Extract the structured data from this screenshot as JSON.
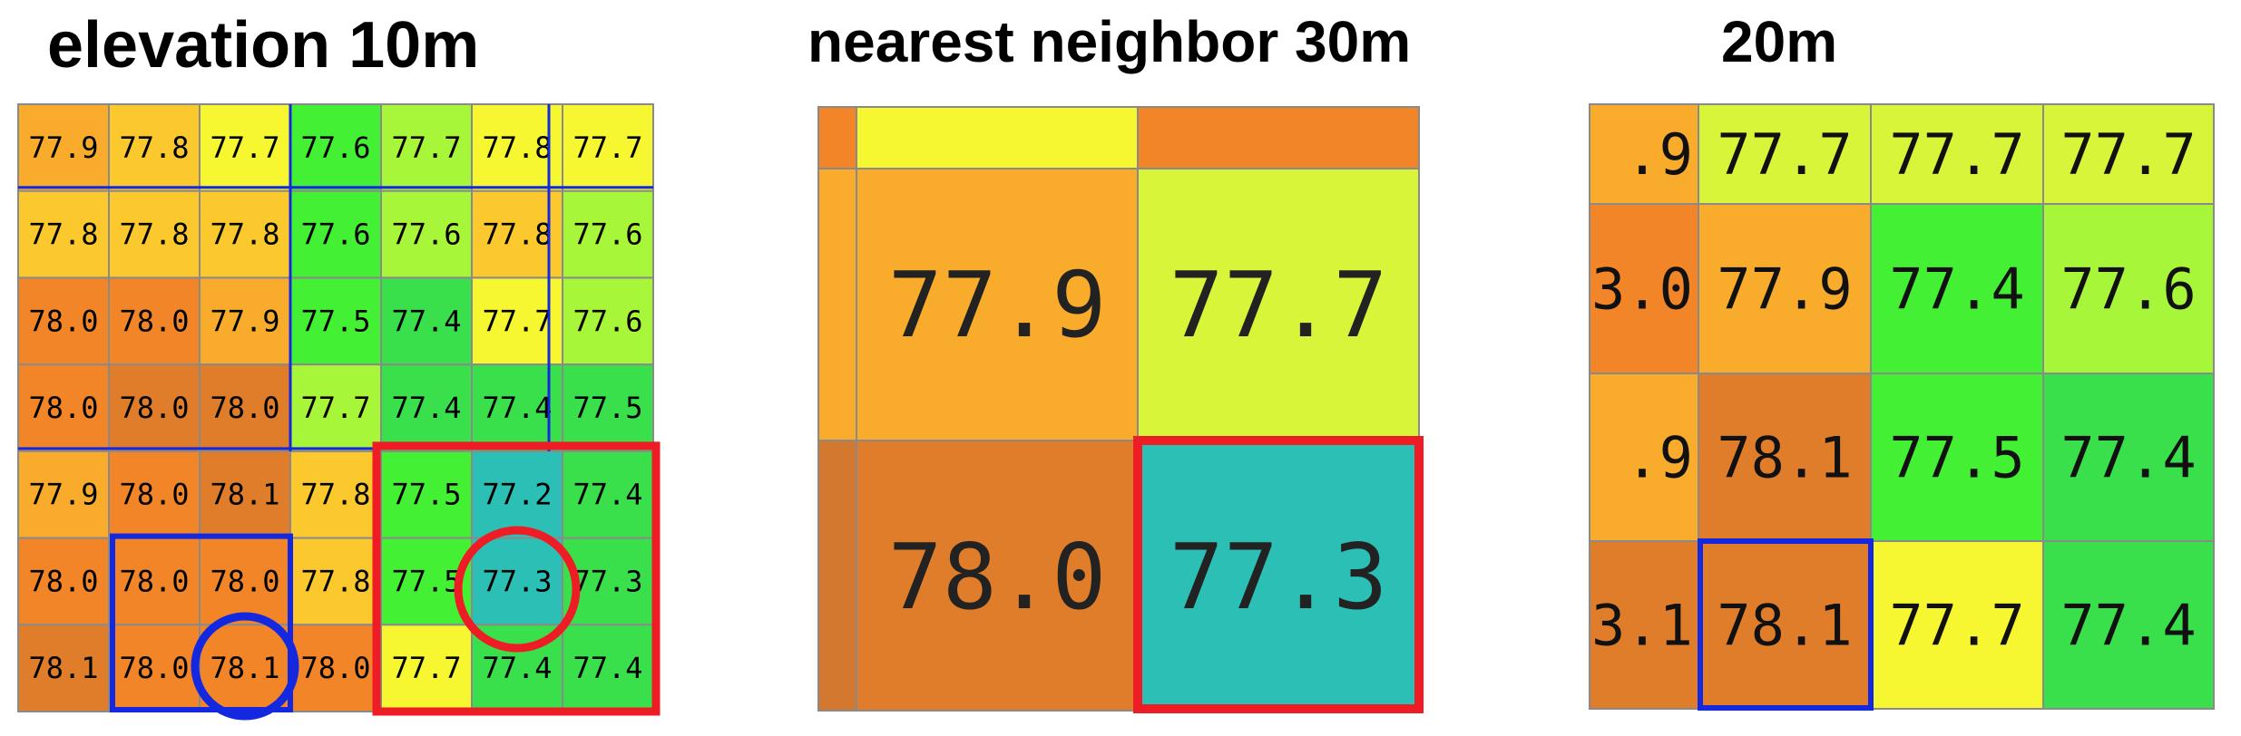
{
  "titles": {
    "elevation": "elevation 10m",
    "nearest": "nearest neighbor 30m",
    "twenty": "20m"
  },
  "colors": {
    "orange_dark": "#e07d2a",
    "orange": "#f28527",
    "orange_light": "#f9ac2b",
    "yellow_orange": "#fbc82d",
    "yellow": "#f6f631",
    "yellow_green": "#d8f53a",
    "light_green": "#a8f63a",
    "green": "#44f033",
    "green_mid": "#39e04b",
    "teal": "#2bbfb5",
    "blue_outline": "#1428e0",
    "red_outline": "#ee1c24",
    "grid": "#8a8a8a"
  },
  "panel_elevation_10m": {
    "rows": [
      [
        "77.9",
        "77.8",
        "77.7",
        "77.6",
        "77.7",
        "77.8",
        "77.7"
      ],
      [
        "77.8",
        "77.8",
        "77.8",
        "77.6",
        "77.6",
        "77.8",
        "77.6"
      ],
      [
        "78.0",
        "78.0",
        "77.9",
        "77.5",
        "77.4",
        "77.7",
        "77.6"
      ],
      [
        "78.0",
        "78.0",
        "78.0",
        "77.7",
        "77.4",
        "77.4",
        "77.5"
      ],
      [
        "77.9",
        "78.0",
        "78.1",
        "77.8",
        "77.5",
        "77.2",
        "77.4"
      ],
      [
        "78.0",
        "78.0",
        "78.0",
        "77.8",
        "77.5",
        "77.3",
        "77.3"
      ],
      [
        "78.1",
        "78.0",
        "78.1",
        "78.0",
        "77.7",
        "77.4",
        "77.4"
      ]
    ],
    "cell_colors": [
      [
        "orange_light",
        "yellow_orange",
        "yellow",
        "green",
        "light_green",
        "yellow",
        "yellow"
      ],
      [
        "yellow_orange",
        "yellow_orange",
        "yellow_orange",
        "green",
        "light_green",
        "yellow_orange",
        "light_green"
      ],
      [
        "orange",
        "orange",
        "orange_light",
        "green",
        "green_mid",
        "yellow",
        "light_green"
      ],
      [
        "orange",
        "orange_dark",
        "orange_dark",
        "light_green",
        "green_mid",
        "green_mid",
        "green_mid"
      ],
      [
        "orange_light",
        "orange",
        "orange_dark",
        "yellow_orange",
        "green",
        "teal",
        "green_mid"
      ],
      [
        "orange",
        "orange",
        "orange",
        "yellow_orange",
        "green",
        "teal",
        "green_mid"
      ],
      [
        "orange_dark",
        "orange",
        "orange",
        "orange",
        "yellow",
        "green_mid",
        "green_mid"
      ]
    ]
  },
  "panel_nearest_30m": {
    "cells": [
      {
        "value": "77.9",
        "color": "orange_light"
      },
      {
        "value": "77.7",
        "color": "yellow_green"
      },
      {
        "value": "78.0",
        "color": "orange_dark"
      },
      {
        "value": "77.3",
        "color": "teal"
      }
    ]
  },
  "panel_20m": {
    "rows": [
      [
        ".9",
        "77.7",
        "77.7",
        "77.7"
      ],
      [
        "3.0",
        "77.9",
        "77.4",
        "77.6"
      ],
      [
        ".9",
        "78.1",
        "77.5",
        "77.4"
      ],
      [
        "3.1",
        "78.1",
        "77.7",
        "77.4"
      ]
    ],
    "cell_colors": [
      [
        "orange_light",
        "yellow_green",
        "yellow_green",
        "yellow_green"
      ],
      [
        "orange",
        "orange_light",
        "green",
        "light_green"
      ],
      [
        "orange_light",
        "orange_dark",
        "green",
        "green_mid"
      ],
      [
        "orange_dark",
        "orange_dark",
        "yellow",
        "green_mid"
      ]
    ]
  }
}
